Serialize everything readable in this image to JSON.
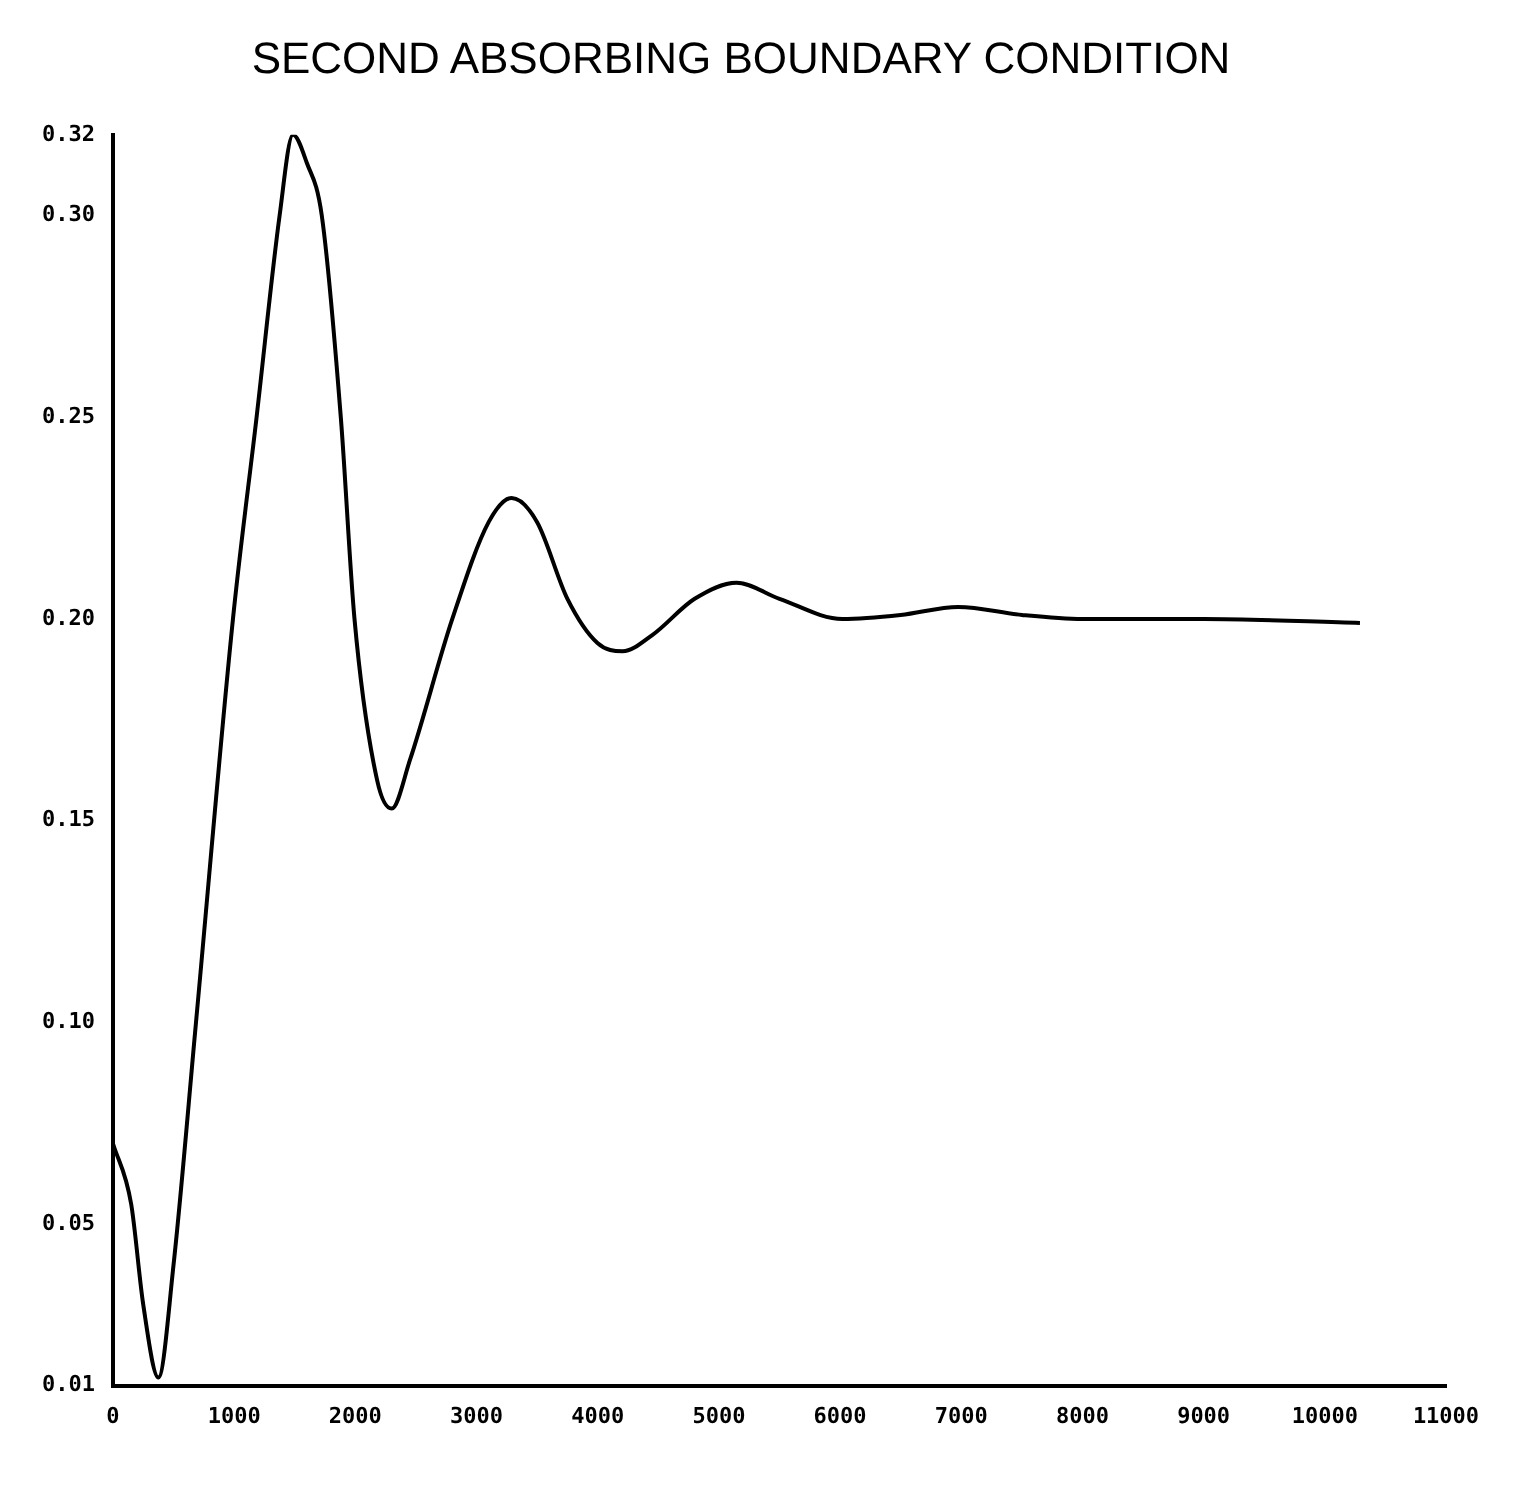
{
  "chart_data": {
    "type": "line",
    "title": "SECOND ABSORBING BOUNDARY CONDITION",
    "series": [
      {
        "color": "#000000",
        "x": [
          0,
          150,
          250,
          375,
          500,
          685,
          990,
          1185,
          1375,
          1485,
          1600,
          1723,
          1880,
          1993,
          2180,
          2300,
          2450,
          2800,
          3100,
          3290,
          3500,
          3750,
          4000,
          4205,
          4450,
          4800,
          5145,
          5500,
          6020,
          6500,
          6975,
          7500,
          8000,
          9000,
          10290
        ],
        "values": [
          0.07,
          0.055,
          0.03,
          0.012,
          0.04,
          0.1,
          0.2,
          0.25,
          0.3,
          0.32,
          0.313,
          0.3,
          0.25,
          0.2,
          0.16,
          0.153,
          0.165,
          0.2,
          0.224,
          0.23,
          0.224,
          0.205,
          0.194,
          0.192,
          0.196,
          0.205,
          0.209,
          0.205,
          0.2,
          0.201,
          0.203,
          0.201,
          0.2,
          0.2,
          0.199
        ]
      }
    ],
    "xlim": [
      0,
      11000
    ],
    "xticks": [
      0,
      1000,
      2000,
      3000,
      4000,
      5000,
      6000,
      7000,
      8000,
      9000,
      10000,
      11000
    ],
    "ylim": [
      0.01,
      0.32
    ],
    "yticks": [
      0.01,
      0.05,
      {
        "value": 0.1,
        "label": "0.10"
      },
      0.15,
      {
        "value": 0.2,
        "label": "0.20"
      },
      0.25,
      {
        "value": 0.3,
        "label": "0.30"
      },
      0.32
    ],
    "grid": false,
    "legend": false,
    "marker": "none",
    "line_style": "solid"
  }
}
